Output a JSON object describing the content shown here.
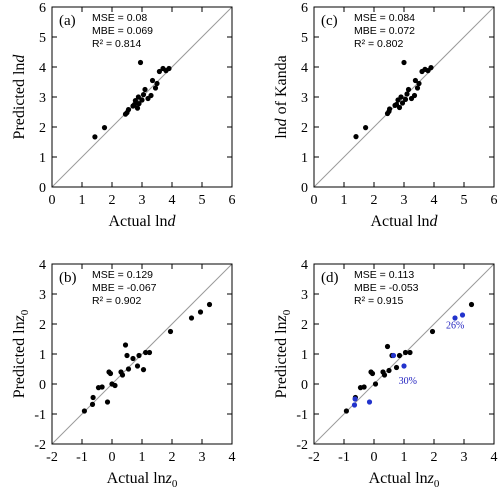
{
  "chart_data": [
    {
      "type": "scatter",
      "panel_label": "(a)",
      "xlabel_main": "Actual ln",
      "xlabel_italic": "d",
      "xlabel_sub": "",
      "ylabel_main": "Predicted ln",
      "ylabel_italic": "d",
      "ylabel_sub": "",
      "xlim": [
        0,
        6
      ],
      "ylim": [
        0,
        6
      ],
      "xticks": [
        "0",
        "1",
        "2",
        "3",
        "4",
        "5",
        "6"
      ],
      "yticks": [
        "0",
        "1",
        "2",
        "3",
        "4",
        "5",
        "6"
      ],
      "reference_line": "1:1",
      "stats": [
        "MSE = 0.08",
        "MBE = 0.069",
        "R² = 0.814"
      ],
      "series": [
        {
          "color": "#000000",
          "x": [
            1.43,
            1.75,
            2.45,
            2.5,
            2.55,
            2.7,
            2.75,
            2.78,
            2.85,
            2.88,
            2.9,
            2.95,
            3.0,
            3.05,
            3.1,
            3.2,
            3.3,
            3.35,
            3.45,
            3.5,
            3.58,
            3.7,
            3.8,
            3.9
          ],
          "y": [
            1.67,
            1.98,
            2.43,
            2.48,
            2.58,
            2.7,
            2.75,
            2.88,
            2.63,
            3.0,
            2.78,
            4.15,
            2.9,
            3.08,
            3.25,
            2.95,
            3.05,
            3.55,
            3.3,
            3.45,
            3.85,
            3.95,
            3.88,
            3.95
          ]
        }
      ]
    },
    {
      "type": "scatter",
      "panel_label": "(c)",
      "xlabel_main": "Actual ln",
      "xlabel_italic": "d",
      "xlabel_sub": "",
      "ylabel_main": "ln",
      "ylabel_italic": "d",
      "ylabel_sub": "",
      "ylabel_suffix": " of Kanda",
      "xlim": [
        0,
        6
      ],
      "ylim": [
        0,
        6
      ],
      "xticks": [
        "0",
        "1",
        "2",
        "3",
        "4",
        "5",
        "6"
      ],
      "yticks": [
        "0",
        "1",
        "2",
        "3",
        "4",
        "5",
        "6"
      ],
      "reference_line": "1:1",
      "stats": [
        "MSE = 0.084",
        "MBE = 0.072",
        "R² = 0.802"
      ],
      "series": [
        {
          "color": "#000000",
          "x": [
            1.4,
            1.72,
            2.45,
            2.5,
            2.52,
            2.7,
            2.75,
            2.8,
            2.85,
            2.9,
            2.95,
            3.0,
            3.05,
            3.1,
            3.15,
            3.25,
            3.35,
            3.38,
            3.45,
            3.5,
            3.6,
            3.7,
            3.8,
            3.9
          ],
          "y": [
            1.68,
            1.98,
            2.45,
            2.52,
            2.6,
            2.72,
            2.75,
            2.9,
            2.65,
            3.0,
            2.8,
            4.15,
            2.92,
            3.1,
            3.25,
            2.95,
            3.05,
            3.55,
            3.3,
            3.45,
            3.85,
            3.92,
            3.88,
            3.98
          ]
        }
      ]
    },
    {
      "type": "scatter",
      "panel_label": "(b)",
      "xlabel_main": "Actual ln",
      "xlabel_italic": "z",
      "xlabel_sub": "0",
      "ylabel_main": "Predicted ln",
      "ylabel_italic": "z",
      "ylabel_sub": "0",
      "xlim": [
        -2,
        4
      ],
      "ylim": [
        -2,
        4
      ],
      "xticks": [
        "-2",
        "-1",
        "0",
        "1",
        "2",
        "3",
        "4"
      ],
      "yticks": [
        "-2",
        "-1",
        "0",
        "1",
        "2",
        "3",
        "4"
      ],
      "reference_line": "1:1",
      "stats": [
        "MSE = 0.129",
        "MBE = -0.067",
        "R² = 0.902"
      ],
      "series": [
        {
          "color": "#000000",
          "x": [
            -0.92,
            -0.65,
            -0.63,
            -0.45,
            -0.33,
            -0.15,
            -0.1,
            -0.05,
            0.0,
            0.1,
            0.3,
            0.35,
            0.45,
            0.5,
            0.55,
            0.7,
            0.85,
            0.9,
            1.05,
            1.12,
            1.25,
            1.95,
            2.65,
            2.95,
            3.25
          ],
          "y": [
            -0.9,
            -0.68,
            -0.45,
            -0.12,
            -0.1,
            -0.6,
            0.4,
            0.35,
            0.0,
            -0.05,
            0.4,
            0.3,
            1.3,
            0.95,
            0.5,
            0.85,
            0.6,
            0.95,
            0.48,
            1.05,
            1.05,
            1.75,
            2.2,
            2.4,
            2.65
          ]
        }
      ]
    },
    {
      "type": "scatter",
      "panel_label": "(d)",
      "xlabel_main": "Actual ln",
      "xlabel_italic": "z",
      "xlabel_sub": "0",
      "ylabel_main": "Predicted ln",
      "ylabel_italic": "z",
      "ylabel_sub": "0",
      "xlim": [
        -2,
        4
      ],
      "ylim": [
        -2,
        4
      ],
      "xticks": [
        "-2",
        "-1",
        "0",
        "1",
        "2",
        "3",
        "4"
      ],
      "yticks": [
        "-2",
        "-1",
        "0",
        "1",
        "2",
        "3",
        "4"
      ],
      "reference_line": "1:1",
      "stats": [
        "MSE = 0.113",
        "MBE = -0.053",
        "R² = 0.915"
      ],
      "annotations": [
        {
          "text": "26%",
          "x": 2.4,
          "y": 1.85,
          "color": "#1f1fbf"
        },
        {
          "text": "30%",
          "x": 0.82,
          "y": 0.0,
          "color": "#1f1fbf"
        }
      ],
      "series": [
        {
          "color": "#000000",
          "x": [
            -0.92,
            -0.62,
            -0.45,
            -0.33,
            -0.1,
            -0.05,
            0.05,
            0.3,
            0.35,
            0.45,
            0.5,
            0.6,
            0.75,
            0.85,
            1.05,
            1.2,
            1.95,
            3.25
          ],
          "y": [
            -0.9,
            -0.45,
            -0.12,
            -0.1,
            0.4,
            0.35,
            0.0,
            0.4,
            0.3,
            1.25,
            0.45,
            0.95,
            0.55,
            0.95,
            1.05,
            1.05,
            1.75,
            2.65
          ]
        },
        {
          "color": "#2233cc",
          "x": [
            -0.65,
            -0.63,
            -0.15,
            0.65,
            1.0,
            2.7,
            2.95
          ],
          "y": [
            -0.7,
            -0.5,
            -0.6,
            0.95,
            0.6,
            2.2,
            2.3
          ]
        }
      ]
    }
  ]
}
